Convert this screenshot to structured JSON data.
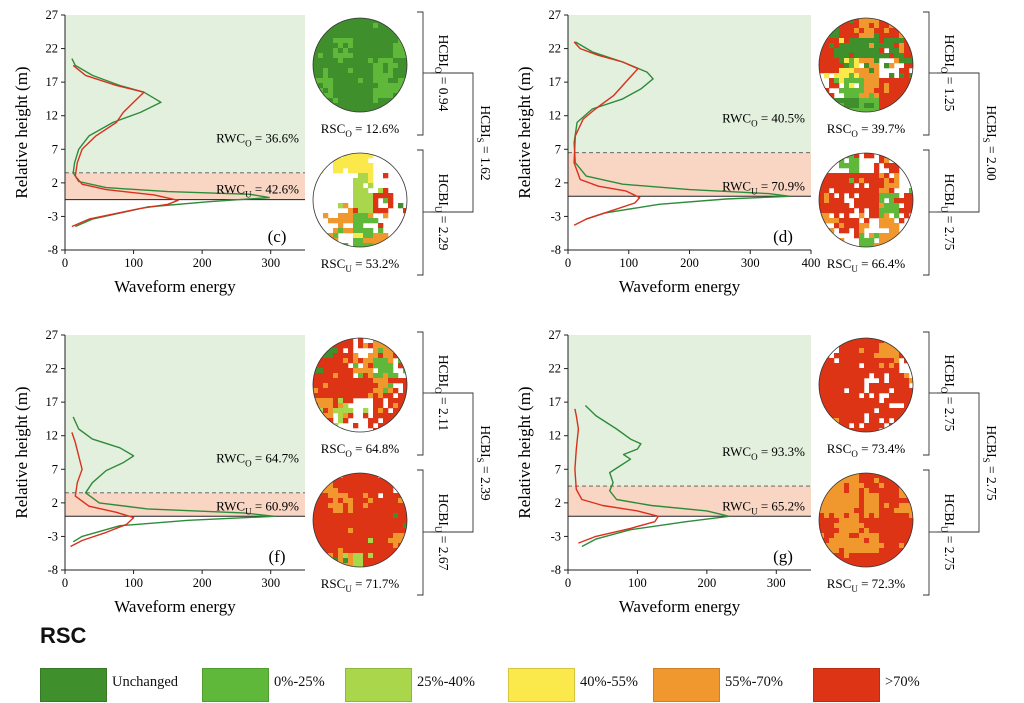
{
  "legend": {
    "title": "RSC",
    "items": [
      {
        "label": "Unchanged",
        "color": "#3f8f2c"
      },
      {
        "label": "0%-25%",
        "color": "#5fb83a"
      },
      {
        "label": "25%-40%",
        "color": "#a9d64a"
      },
      {
        "label": "40%-55%",
        "color": "#fbe84a"
      },
      {
        "label": "55%-70%",
        "color": "#f0982e"
      },
      {
        "label": ">70%",
        "color": "#dd3416"
      }
    ]
  },
  "colors": {
    "overstory_band": "#e3f0de",
    "understory_band": "#f8d6c3",
    "line_green": "#2e8b3a",
    "line_red": "#d9301e"
  },
  "chart_data": [
    {
      "type": "line",
      "panel_label": "(c)",
      "xlabel": "Waveform energy",
      "ylabel": "Relative height (m)",
      "xlim": [
        0,
        350
      ],
      "ylim": [
        -8,
        27
      ],
      "xticks": [
        "0",
        "100",
        "200",
        "300"
      ],
      "yticks": [
        "-8",
        "-3",
        "2",
        "7",
        "12",
        "17",
        "22",
        "27"
      ],
      "overstory_band": [
        3.5,
        27
      ],
      "understory_band": [
        -0.5,
        3.5
      ],
      "divider_height": 3.5,
      "ground_height": -0.5,
      "series": [
        {
          "color": "green",
          "points": [
            [
              15,
              -4.5
            ],
            [
              40,
              -3.4
            ],
            [
              120,
              -1.6
            ],
            [
              210,
              -0.8
            ],
            [
              298,
              -0.2
            ],
            [
              270,
              0.3
            ],
            [
              150,
              0.7
            ],
            [
              60,
              1.3
            ],
            [
              20,
              2.2
            ],
            [
              12,
              3.5
            ],
            [
              14,
              5
            ],
            [
              20,
              7
            ],
            [
              35,
              9
            ],
            [
              70,
              11
            ],
            [
              110,
              12.5
            ],
            [
              140,
              14
            ],
            [
              115,
              15.5
            ],
            [
              80,
              16.5
            ],
            [
              40,
              18
            ],
            [
              15,
              19.5
            ],
            [
              10,
              20.5
            ]
          ]
        },
        {
          "color": "red",
          "points": [
            [
              10,
              -4.5
            ],
            [
              35,
              -3.4
            ],
            [
              110,
              -1.8
            ],
            [
              150,
              -1.2
            ],
            [
              165,
              -0.6
            ],
            [
              130,
              0.2
            ],
            [
              60,
              1.0
            ],
            [
              25,
              1.8
            ],
            [
              15,
              3
            ],
            [
              18,
              5
            ],
            [
              25,
              7
            ],
            [
              45,
              9
            ],
            [
              75,
              11
            ],
            [
              85,
              12.5
            ],
            [
              100,
              14
            ],
            [
              115,
              15.5
            ],
            [
              75,
              16.5
            ],
            [
              30,
              18
            ],
            [
              12,
              19.5
            ]
          ]
        }
      ],
      "annotations": {
        "rwc_o": {
          "prefix": "RWC",
          "sub": "O",
          "value": " = 36.6%"
        },
        "rwc_u": {
          "prefix": "RWC",
          "sub": "U",
          "value": " = 42.6%"
        },
        "rsc_o": {
          "prefix": "RSC",
          "sub": "O",
          "value": " = 12.6%"
        },
        "rsc_u": {
          "prefix": "RSC",
          "sub": "U",
          "value": " = 53.2%"
        },
        "hcbi_o": {
          "prefix": "HCBI",
          "sub": "O",
          "value": " = 0.94"
        },
        "hcbi_u": {
          "prefix": "HCBI",
          "sub": "U",
          "value": " = 2.29"
        },
        "hcbi_s": {
          "prefix": "HCBI",
          "sub": "S",
          "value": " = 1.62"
        }
      }
    },
    {
      "type": "line",
      "panel_label": "(d)",
      "xlabel": "Waveform energy",
      "ylabel": "Relative height (m)",
      "xlim": [
        0,
        400
      ],
      "ylim": [
        -8,
        27
      ],
      "xticks": [
        "0",
        "100",
        "200",
        "300",
        "400"
      ],
      "yticks": [
        "-8",
        "-3",
        "2",
        "7",
        "12",
        "17",
        "22",
        "27"
      ],
      "overstory_band": [
        6.5,
        27
      ],
      "understory_band": [
        0,
        6.5
      ],
      "divider_height": 6.5,
      "ground_height": 0,
      "series": [
        {
          "color": "green",
          "points": [
            [
              30,
              -3.4
            ],
            [
              60,
              -2.5
            ],
            [
              150,
              -1.2
            ],
            [
              260,
              -0.4
            ],
            [
              365,
              0
            ],
            [
              330,
              0.4
            ],
            [
              200,
              1
            ],
            [
              90,
              1.8
            ],
            [
              30,
              3
            ],
            [
              12,
              5
            ],
            [
              10,
              8
            ],
            [
              15,
              11
            ],
            [
              40,
              13
            ],
            [
              90,
              14.5
            ],
            [
              120,
              16
            ],
            [
              140,
              17.5
            ],
            [
              130,
              18.5
            ],
            [
              90,
              20
            ],
            [
              40,
              21.5
            ],
            [
              12,
              23
            ]
          ]
        },
        {
          "color": "red",
          "points": [
            [
              10,
              -4.3
            ],
            [
              30,
              -3.4
            ],
            [
              70,
              -2.2
            ],
            [
              110,
              -1
            ],
            [
              118,
              -0.2
            ],
            [
              95,
              0.8
            ],
            [
              50,
              1.5
            ],
            [
              20,
              2.5
            ],
            [
              10,
              5
            ],
            [
              12,
              9
            ],
            [
              25,
              11.5
            ],
            [
              45,
              13
            ],
            [
              75,
              15
            ],
            [
              95,
              17
            ],
            [
              115,
              19
            ],
            [
              90,
              20
            ],
            [
              50,
              21
            ],
            [
              20,
              22
            ],
            [
              10,
              23
            ]
          ]
        }
      ],
      "annotations": {
        "rwc_o": {
          "prefix": "RWC",
          "sub": "O",
          "value": " = 40.5%"
        },
        "rwc_u": {
          "prefix": "RWC",
          "sub": "U",
          "value": " = 70.9%"
        },
        "rsc_o": {
          "prefix": "RSC",
          "sub": "O",
          "value": " = 39.7%"
        },
        "rsc_u": {
          "prefix": "RSC",
          "sub": "U",
          "value": " = 66.4%"
        },
        "hcbi_o": {
          "prefix": "HCBI",
          "sub": "O",
          "value": " = 1.25"
        },
        "hcbi_u": {
          "prefix": "HCBI",
          "sub": "U",
          "value": " = 2.75"
        },
        "hcbi_s": {
          "prefix": "HCBI",
          "sub": "S",
          "value": " = 2.00"
        }
      }
    },
    {
      "type": "line",
      "panel_label": "(f)",
      "xlabel": "Waveform energy",
      "ylabel": "Relative height (m)",
      "xlim": [
        0,
        350
      ],
      "ylim": [
        -8,
        27
      ],
      "xticks": [
        "0",
        "100",
        "200",
        "300"
      ],
      "yticks": [
        "-8",
        "-3",
        "2",
        "7",
        "12",
        "17",
        "22",
        "27"
      ],
      "overstory_band": [
        3.5,
        27
      ],
      "understory_band": [
        0,
        3.5
      ],
      "divider_height": 3.5,
      "ground_height": 0,
      "series": [
        {
          "color": "green",
          "points": [
            [
              12,
              -3.8
            ],
            [
              25,
              -3
            ],
            [
              80,
              -1.4
            ],
            [
              180,
              -0.6
            ],
            [
              305,
              0
            ],
            [
              260,
              0.5
            ],
            [
              120,
              1.1
            ],
            [
              50,
              2
            ],
            [
              30,
              3.5
            ],
            [
              40,
              5
            ],
            [
              60,
              6.8
            ],
            [
              85,
              8
            ],
            [
              100,
              9
            ],
            [
              80,
              10.2
            ],
            [
              40,
              11.5
            ],
            [
              20,
              13
            ],
            [
              12,
              14.8
            ]
          ]
        },
        {
          "color": "red",
          "points": [
            [
              8,
              -4.5
            ],
            [
              25,
              -3.6
            ],
            [
              60,
              -2.4
            ],
            [
              90,
              -1.2
            ],
            [
              100,
              -0.2
            ],
            [
              75,
              0.6
            ],
            [
              35,
              1.5
            ],
            [
              15,
              3
            ],
            [
              18,
              5
            ],
            [
              25,
              7
            ],
            [
              20,
              9
            ],
            [
              15,
              11
            ],
            [
              10,
              12.5
            ]
          ]
        }
      ],
      "annotations": {
        "rwc_o": {
          "prefix": "RWC",
          "sub": "O",
          "value": " = 64.7%"
        },
        "rwc_u": {
          "prefix": "RWC",
          "sub": "U",
          "value": " = 60.9%"
        },
        "rsc_o": {
          "prefix": "RSC",
          "sub": "O",
          "value": " = 64.8%"
        },
        "rsc_u": {
          "prefix": "RSC",
          "sub": "U",
          "value": " = 71.7%"
        },
        "hcbi_o": {
          "prefix": "HCBI",
          "sub": "O",
          "value": " = 2.11"
        },
        "hcbi_u": {
          "prefix": "HCBI",
          "sub": "U",
          "value": " = 2.67"
        },
        "hcbi_s": {
          "prefix": "HCBI",
          "sub": "S",
          "value": " = 2.39"
        }
      }
    },
    {
      "type": "line",
      "panel_label": "(g)",
      "xlabel": "Waveform energy",
      "ylabel": "Relative height (m)",
      "xlim": [
        0,
        350
      ],
      "ylim": [
        -8,
        27
      ],
      "xticks": [
        "0",
        "100",
        "200",
        "300"
      ],
      "yticks": [
        "-8",
        "-3",
        "2",
        "7",
        "12",
        "17",
        "22",
        "27"
      ],
      "overstory_band": [
        4.5,
        27
      ],
      "understory_band": [
        0,
        4.5
      ],
      "divider_height": 4.5,
      "ground_height": 0,
      "series": [
        {
          "color": "green",
          "points": [
            [
              20,
              -4.5
            ],
            [
              40,
              -3.4
            ],
            [
              90,
              -2
            ],
            [
              170,
              -0.8
            ],
            [
              232,
              0
            ],
            [
              200,
              0.8
            ],
            [
              120,
              1.6
            ],
            [
              70,
              2.5
            ],
            [
              60,
              3.8
            ],
            [
              65,
              5
            ],
            [
              60,
              6.5
            ],
            [
              75,
              7.5
            ],
            [
              90,
              8.5
            ],
            [
              80,
              9.2
            ],
            [
              100,
              10
            ],
            [
              105,
              10.8
            ],
            [
              90,
              11.5
            ],
            [
              70,
              13
            ],
            [
              40,
              15
            ],
            [
              25,
              16.5
            ]
          ]
        },
        {
          "color": "red",
          "points": [
            [
              15,
              -4
            ],
            [
              40,
              -3
            ],
            [
              90,
              -1.8
            ],
            [
              125,
              -0.8
            ],
            [
              130,
              0
            ],
            [
              100,
              0.8
            ],
            [
              50,
              1.6
            ],
            [
              20,
              2.5
            ],
            [
              12,
              4
            ],
            [
              10,
              7
            ],
            [
              12,
              10
            ],
            [
              15,
              13
            ],
            [
              12,
              15
            ],
            [
              10,
              16
            ]
          ]
        }
      ],
      "annotations": {
        "rwc_o": {
          "prefix": "RWC",
          "sub": "O",
          "value": " = 93.3%"
        },
        "rwc_u": {
          "prefix": "RWC",
          "sub": "U",
          "value": " = 65.2%"
        },
        "rsc_o": {
          "prefix": "RSC",
          "sub": "O",
          "value": " = 73.4%"
        },
        "rsc_u": {
          "prefix": "RSC",
          "sub": "U",
          "value": " = 72.3%"
        },
        "hcbi_o": {
          "prefix": "HCBI",
          "sub": "O",
          "value": " = 2.75"
        },
        "hcbi_u": {
          "prefix": "HCBI",
          "sub": "U",
          "value": " = 2.75"
        },
        "hcbi_s": {
          "prefix": "HCBI",
          "sub": "S",
          "value": " = 2.75"
        }
      }
    }
  ]
}
